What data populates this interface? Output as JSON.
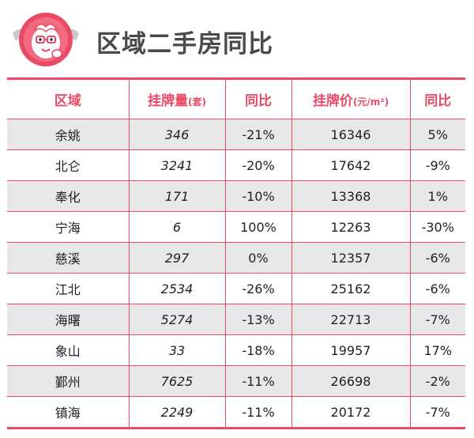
{
  "title": "区域二手房同比",
  "table": {
    "headers": {
      "region": "区域",
      "listings": "挂牌量",
      "listings_unit": "(套)",
      "yoy1": "同比",
      "price": "挂牌价",
      "price_unit": "(元/m²)",
      "yoy2": "同比"
    },
    "rows": [
      {
        "region": "余姚",
        "listings": "346",
        "yoy1": "-21%",
        "price": "16346",
        "yoy2": "5%"
      },
      {
        "region": "北仑",
        "listings": "3241",
        "yoy1": "-20%",
        "price": "17642",
        "yoy2": "-9%"
      },
      {
        "region": "奉化",
        "listings": "171",
        "yoy1": "-10%",
        "price": "13368",
        "yoy2": "1%"
      },
      {
        "region": "宁海",
        "listings": "6",
        "yoy1": "100%",
        "price": "12263",
        "yoy2": "-30%"
      },
      {
        "region": "慈溪",
        "listings": "297",
        "yoy1": "0%",
        "price": "12357",
        "yoy2": "-6%"
      },
      {
        "region": "江北",
        "listings": "2534",
        "yoy1": "-26%",
        "price": "25162",
        "yoy2": "-6%"
      },
      {
        "region": "海曙",
        "listings": "5274",
        "yoy1": "-13%",
        "price": "22713",
        "yoy2": "-7%"
      },
      {
        "region": "象山",
        "listings": "33",
        "yoy1": "-18%",
        "price": "19957",
        "yoy2": "17%"
      },
      {
        "region": "鄞州",
        "listings": "7625",
        "yoy1": "-11%",
        "price": "26698",
        "yoy2": "-2%"
      },
      {
        "region": "镇海",
        "listings": "2249",
        "yoy1": "-11%",
        "price": "20172",
        "yoy2": "-7%"
      }
    ]
  },
  "colors": {
    "accent": "#e94b67",
    "row_shade": "#e8e8e8",
    "title": "#4a4a4a"
  },
  "icons": {
    "mascot": "red-mascot-icon"
  }
}
